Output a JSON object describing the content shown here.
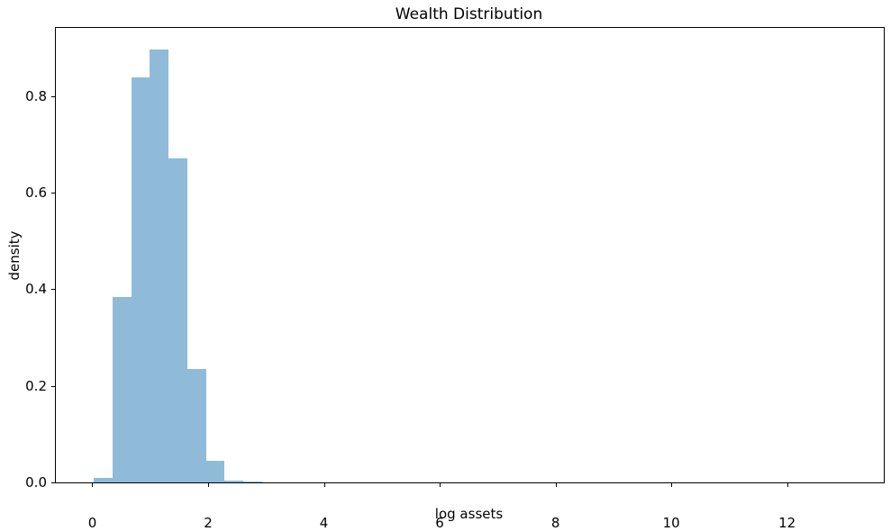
{
  "chart_data": {
    "type": "bar",
    "subtype": "histogram",
    "title": "Wealth Distribution",
    "xlabel": "log assets",
    "ylabel": "density",
    "bar_color": "#8fbbd9",
    "spine_color": "#000000",
    "grid": false,
    "legend": null,
    "xlim": [
      -0.63,
      13.67
    ],
    "ylim": [
      0,
      0.941
    ],
    "xticks": [
      0,
      2,
      4,
      6,
      8,
      10,
      12
    ],
    "xtick_labels": [
      "0",
      "2",
      "4",
      "6",
      "8",
      "10",
      "12"
    ],
    "yticks": [
      0.0,
      0.2,
      0.4,
      0.6,
      0.8
    ],
    "ytick_labels": [
      "0.0",
      "0.2",
      "0.4",
      "0.6",
      "0.8"
    ],
    "bin_edges": [
      0.026,
      0.349,
      0.672,
      0.995,
      1.318,
      1.641,
      1.964,
      2.287,
      2.61,
      2.933
    ],
    "densities": [
      0.009,
      0.384,
      0.838,
      0.896,
      0.671,
      0.235,
      0.045,
      0.004,
      0.002
    ]
  }
}
